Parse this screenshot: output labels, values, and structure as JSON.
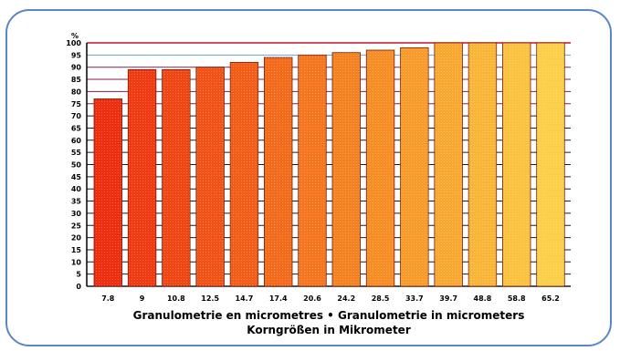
{
  "chart_data": {
    "type": "bar",
    "title": "",
    "ylabel": "%",
    "xlabel": "Granulometrie en micrometres • Granulometrie in micrometers",
    "xlabel2": "Korngrößen in Mikrometer",
    "categories": [
      "7.8",
      "9",
      "10.8",
      "12.5",
      "14.7",
      "17.4",
      "20.6",
      "24.2",
      "28.5",
      "33.7",
      "39.7",
      "48.8",
      "58.8",
      "65.2"
    ],
    "values": [
      77,
      89,
      89,
      90,
      92,
      94,
      95,
      96,
      97,
      98,
      100,
      100,
      100,
      100
    ],
    "ylim": [
      0,
      100
    ],
    "yticks": [
      0,
      5,
      10,
      15,
      20,
      25,
      30,
      35,
      40,
      45,
      50,
      55,
      60,
      65,
      70,
      75,
      80,
      85,
      90,
      95,
      100
    ],
    "bar_colors": [
      "#ee2e10",
      "#ef3a12",
      "#f04614",
      "#f15216",
      "#f25e18",
      "#f36a1b",
      "#f4761e",
      "#f58221",
      "#f68e25",
      "#f79b2a",
      "#f8a830",
      "#f9b537",
      "#fac23f",
      "#fbcf48"
    ],
    "grid": true,
    "gridline_colors": {
      "major": "#1a1a1a",
      "upper": "#8a1a55",
      "accent": "#5aa6e0"
    }
  }
}
